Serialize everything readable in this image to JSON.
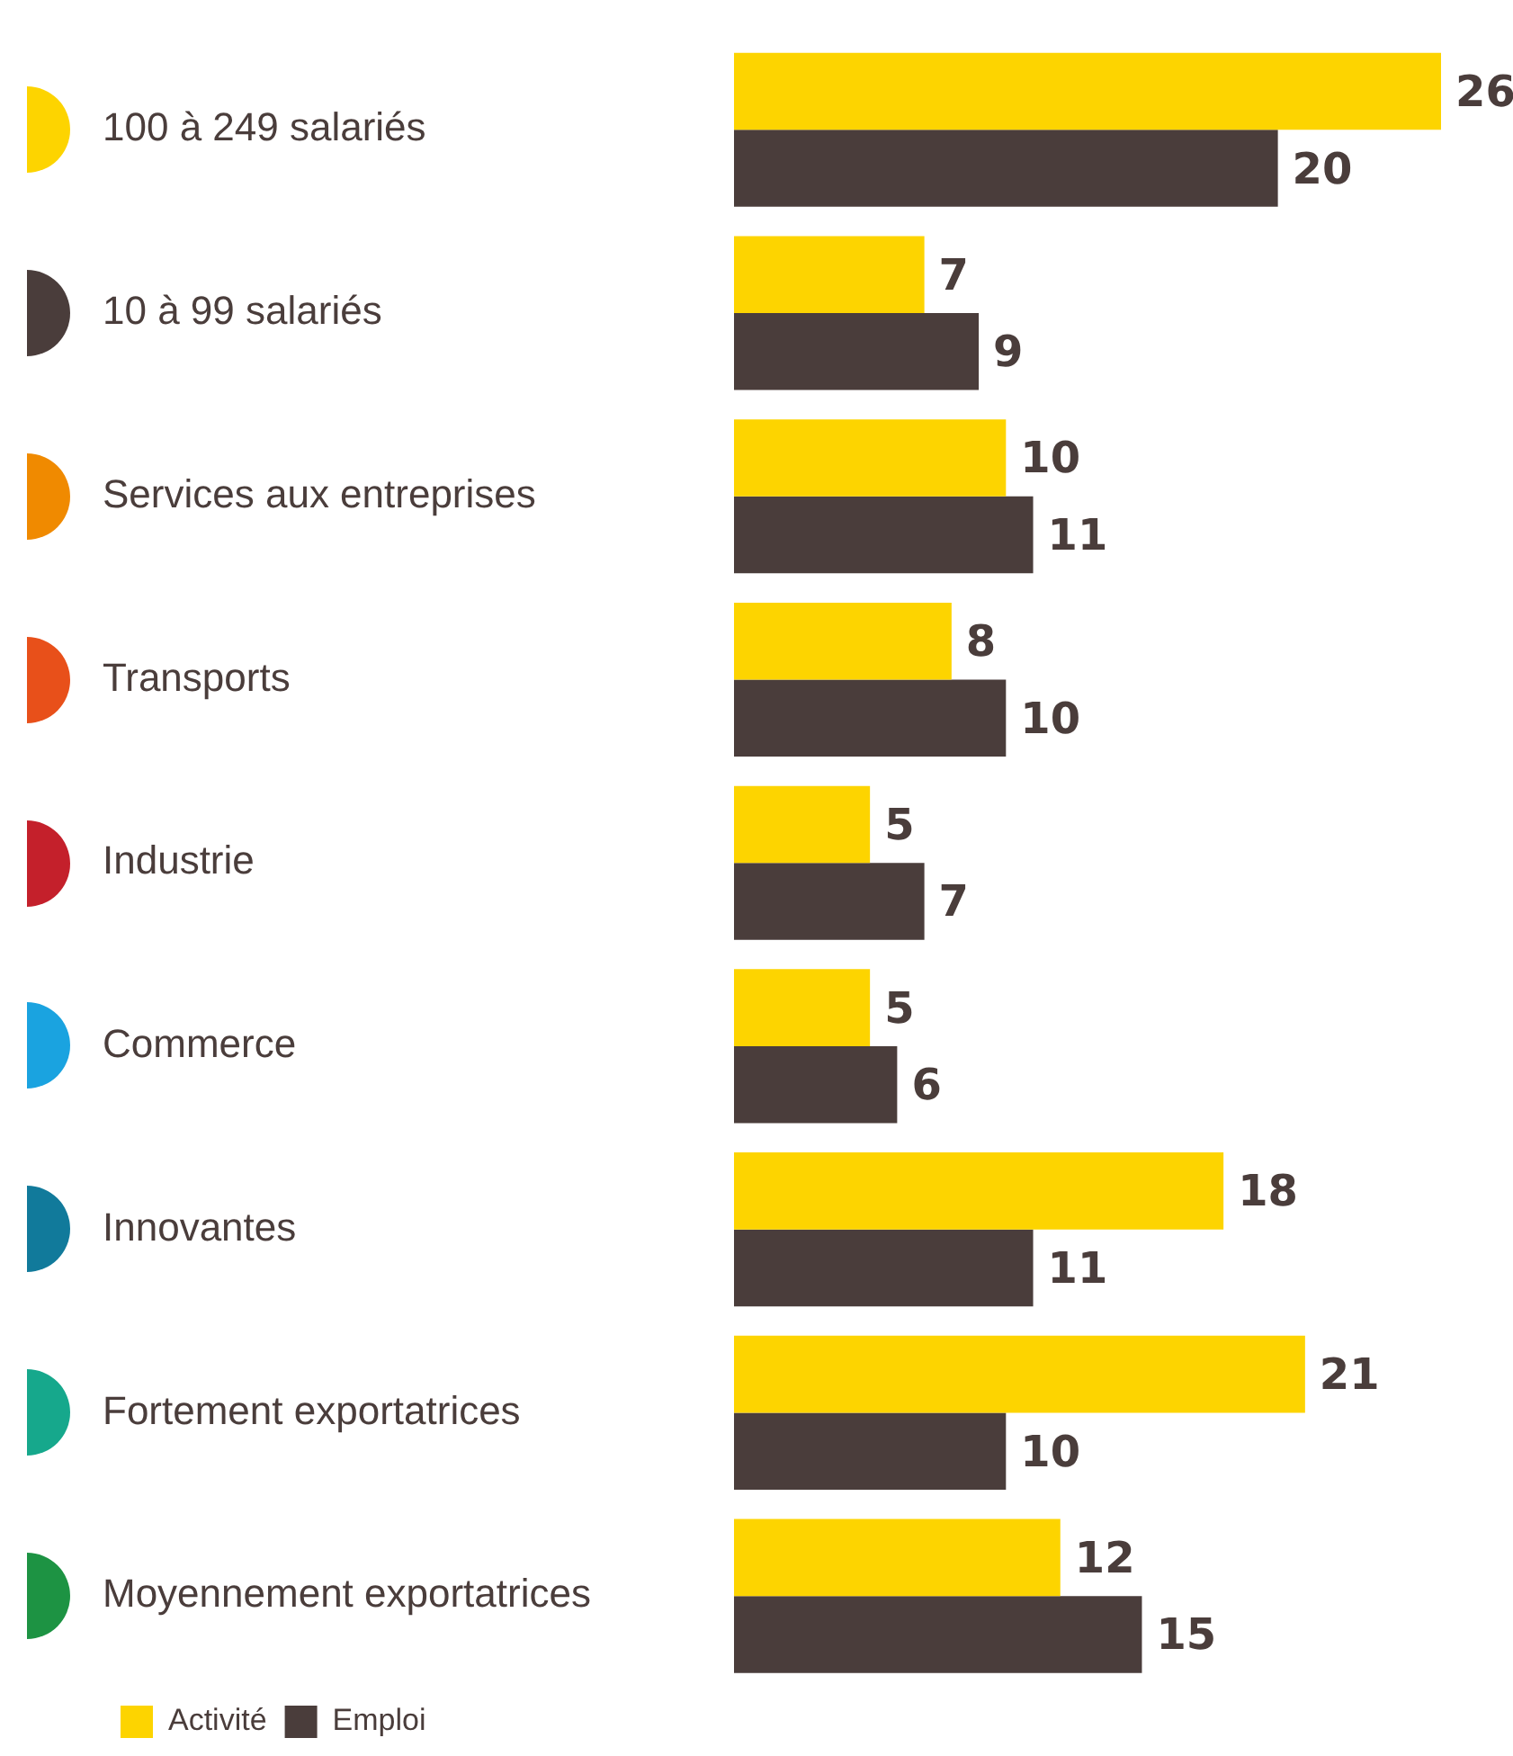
{
  "chart_data": {
    "type": "bar",
    "orientation": "horizontal",
    "categories": [
      "100 à 249 salariés",
      "10 à 99 salariés",
      "Services aux entreprises",
      "Transports",
      "Industrie",
      "Commerce",
      "Innovantes",
      "Fortement exportatrices",
      "Moyennement exportatrices"
    ],
    "series": [
      {
        "name": "Activité",
        "color": "#fdd400",
        "values": [
          26,
          7,
          10,
          8,
          5,
          5,
          18,
          21,
          12
        ]
      },
      {
        "name": "Emploi",
        "color": "#4a3d3b",
        "values": [
          20,
          9,
          11,
          10,
          7,
          6,
          11,
          10,
          15
        ]
      }
    ],
    "xlim": [
      0,
      26
    ],
    "tick_labels": "y",
    "legend": "bottom left",
    "data_labels": true
  }
}
